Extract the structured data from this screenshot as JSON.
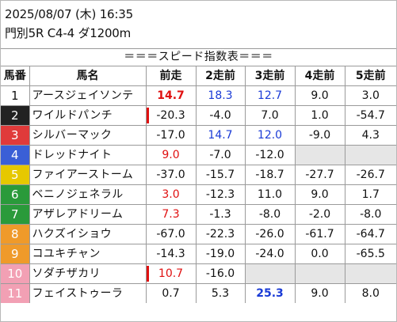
{
  "header": {
    "datetime": "2025/08/07 (木) 16:35",
    "race": "門別5R C4-4 ダ1200m"
  },
  "title": "＝＝＝スピード指数表＝＝＝",
  "columns": [
    "馬番",
    "馬名",
    "前走",
    "2走前",
    "3走前",
    "4走前",
    "5走前"
  ],
  "colors": {
    "red": "#e01010",
    "blue": "#1a3bd6"
  },
  "rows": [
    {
      "num": "1",
      "name": "アースジェイソンテ",
      "gate_bg": "#ffffff",
      "gate_fg": "#111111",
      "vals": [
        "14.7",
        "18.3",
        "12.7",
        "9.0",
        "3.0"
      ],
      "styles": [
        "red-bold",
        "blue",
        "blue",
        "",
        ""
      ],
      "bar": false
    },
    {
      "num": "2",
      "name": "ワイルドパンチ",
      "gate_bg": "#222222",
      "gate_fg": "#ffffff",
      "vals": [
        "-20.3",
        "-4.0",
        "7.0",
        "1.0",
        "-54.7"
      ],
      "styles": [
        "",
        "",
        "",
        "",
        ""
      ],
      "bar": true
    },
    {
      "num": "3",
      "name": "シルバーマック",
      "gate_bg": "#e03a3a",
      "gate_fg": "#ffffff",
      "vals": [
        "-17.0",
        "14.7",
        "12.0",
        "-9.0",
        "4.3"
      ],
      "styles": [
        "",
        "blue",
        "blue",
        "",
        ""
      ],
      "bar": false
    },
    {
      "num": "4",
      "name": "ドレッドナイト",
      "gate_bg": "#3a5fd6",
      "gate_fg": "#ffffff",
      "vals": [
        "9.0",
        "-7.0",
        "-12.0",
        "",
        ""
      ],
      "styles": [
        "red",
        "",
        "",
        "",
        ""
      ],
      "bar": false
    },
    {
      "num": "5",
      "name": "ファイアーストーム",
      "gate_bg": "#e6c800",
      "gate_fg": "#ffffff",
      "vals": [
        "-37.0",
        "-15.7",
        "-18.7",
        "-27.7",
        "-26.7"
      ],
      "styles": [
        "",
        "",
        "",
        "",
        ""
      ],
      "bar": false
    },
    {
      "num": "6",
      "name": "ベニノジェネラル",
      "gate_bg": "#2a9a3a",
      "gate_fg": "#ffffff",
      "vals": [
        "3.0",
        "-12.3",
        "11.0",
        "9.0",
        "1.7"
      ],
      "styles": [
        "red",
        "",
        "",
        "",
        ""
      ],
      "bar": false
    },
    {
      "num": "7",
      "name": "アザレアドリーム",
      "gate_bg": "#2a9a3a",
      "gate_fg": "#ffffff",
      "vals": [
        "7.3",
        "-1.3",
        "-8.0",
        "-2.0",
        "-8.0"
      ],
      "styles": [
        "red",
        "",
        "",
        "",
        ""
      ],
      "bar": false
    },
    {
      "num": "8",
      "name": "ハクズイショウ",
      "gate_bg": "#ef9a2a",
      "gate_fg": "#ffffff",
      "vals": [
        "-67.0",
        "-22.3",
        "-26.0",
        "-61.7",
        "-64.7"
      ],
      "styles": [
        "",
        "",
        "",
        "",
        ""
      ],
      "bar": false
    },
    {
      "num": "9",
      "name": "コユキチャン",
      "gate_bg": "#ef9a2a",
      "gate_fg": "#ffffff",
      "vals": [
        "-14.3",
        "-19.0",
        "-24.0",
        "0.0",
        "-65.5"
      ],
      "styles": [
        "",
        "",
        "",
        "",
        ""
      ],
      "bar": false
    },
    {
      "num": "10",
      "name": "ソダチザカリ",
      "gate_bg": "#f2a0b4",
      "gate_fg": "#ffffff",
      "vals": [
        "10.7",
        "-16.0",
        "",
        "",
        ""
      ],
      "styles": [
        "red",
        "",
        "",
        "",
        ""
      ],
      "bar": true
    },
    {
      "num": "11",
      "name": "フェイストゥーラ",
      "gate_bg": "#f2a0b4",
      "gate_fg": "#ffffff",
      "vals": [
        "0.7",
        "5.3",
        "25.3",
        "9.0",
        "8.0"
      ],
      "styles": [
        "",
        "",
        "blue-bold",
        "",
        ""
      ],
      "bar": false
    }
  ]
}
